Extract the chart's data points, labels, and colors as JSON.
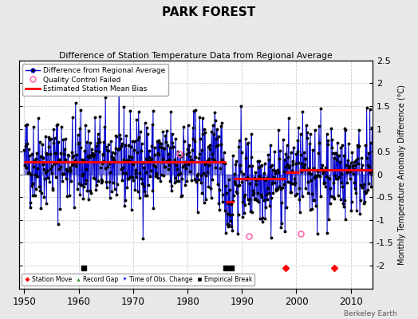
{
  "title": "PARK FOREST",
  "subtitle": "Difference of Station Temperature Data from Regional Average",
  "ylabel": "Monthly Temperature Anomaly Difference (°C)",
  "xlabel_years": [
    1950,
    1960,
    1970,
    1980,
    1990,
    2000,
    2010
  ],
  "ylim": [
    -2.5,
    2.5
  ],
  "yticks": [
    -2,
    -1.5,
    -1,
    -0.5,
    0,
    0.5,
    1,
    1.5,
    2,
    2.5
  ],
  "xlim": [
    1949,
    2014
  ],
  "background_color": "#e8e8e8",
  "plot_bg_color": "#ffffff",
  "line_color": "#0000cc",
  "dot_color": "#000000",
  "bias_color": "#ff0000",
  "seed": 42,
  "segments": [
    {
      "start": 1950.0,
      "end": 1987.0,
      "bias": 0.28
    },
    {
      "start": 1987.0,
      "end": 1988.5,
      "bias": -0.6
    },
    {
      "start": 1988.5,
      "end": 1998.0,
      "bias": -0.1
    },
    {
      "start": 1998.0,
      "end": 2000.5,
      "bias": 0.05
    },
    {
      "start": 2000.5,
      "end": 2014.0,
      "bias": 0.1
    }
  ],
  "time_obs_years": [],
  "empirical_break_years": [
    1987.0,
    1988.5
  ],
  "station_move_years": [
    1998.0,
    2007.5
  ],
  "qc_fail_points": [
    [
      1978.5,
      0.45
    ],
    [
      1991.3,
      -1.35
    ],
    [
      2000.8,
      -1.3
    ]
  ],
  "bottom_markers": [
    {
      "year": 1961,
      "type": "empirical"
    },
    {
      "year": 1987,
      "type": "empirical"
    },
    {
      "year": 1988,
      "type": "empirical"
    },
    {
      "year": 1998,
      "type": "station_move"
    },
    {
      "year": 2007,
      "type": "station_move"
    }
  ]
}
